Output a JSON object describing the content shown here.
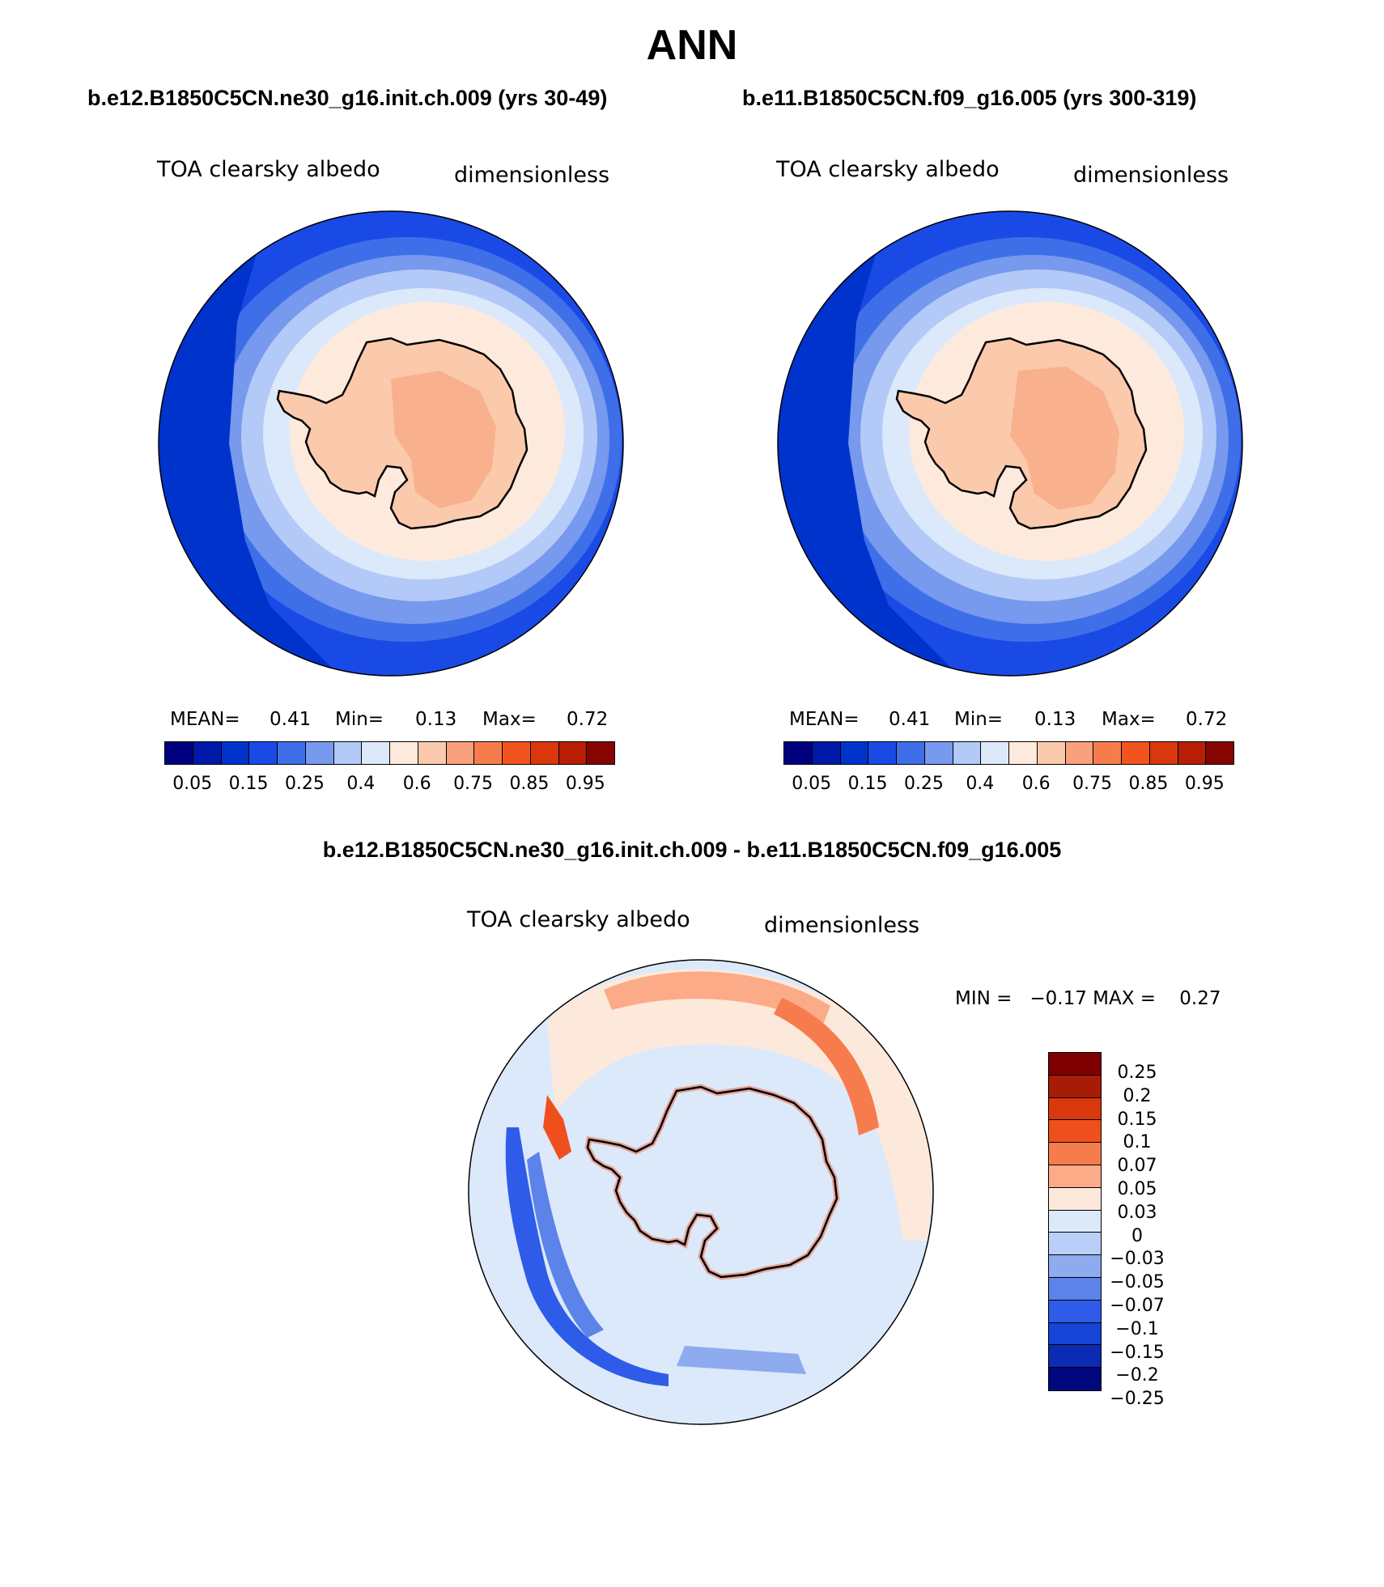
{
  "title": "ANN",
  "panels": [
    {
      "case": "b.e12.B1850C5CN.ne30_g16.init.ch.009 (yrs 30-49)",
      "variable": "TOA clearsky albedo",
      "units": "dimensionless",
      "stats": {
        "mean_label": "MEAN=",
        "mean": "0.41",
        "min_label": "Min=",
        "min": "0.13",
        "max_label": "Max=",
        "max": "0.72"
      }
    },
    {
      "case": "b.e11.B1850C5CN.f09_g16.005 (yrs 300-319)",
      "variable": "TOA clearsky albedo",
      "units": "dimensionless",
      "stats": {
        "mean_label": "MEAN=",
        "mean": "0.41",
        "min_label": "Min=",
        "min": "0.13",
        "max_label": "Max=",
        "max": "0.72"
      }
    }
  ],
  "colorbar": {
    "colors": [
      "#00007f",
      "#0019a8",
      "#0033cc",
      "#1a4ae6",
      "#3f6fe8",
      "#7799ee",
      "#b3c9f7",
      "#dce9fb",
      "#feeadc",
      "#fbc9ac",
      "#f9a07c",
      "#f77c4d",
      "#f2541f",
      "#d9380d",
      "#b81e06",
      "#850503"
    ],
    "ticks": [
      "0.05",
      "0.15",
      "0.25",
      "0.4",
      "0.6",
      "0.75",
      "0.85",
      "0.95"
    ]
  },
  "difference": {
    "title": "b.e12.B1850C5CN.ne30_g16.init.ch.009 - b.e11.B1850C5CN.f09_g16.005",
    "variable": "TOA clearsky albedo",
    "units": "dimensionless",
    "minmax": "MIN =   −0.17 MAX =    0.27",
    "colors": [
      "#7f0000",
      "#a81b04",
      "#d9380d",
      "#ef4f1c",
      "#f77c4d",
      "#fbab87",
      "#fde9dc",
      "#dce9fb",
      "#b9cff7",
      "#8eabf0",
      "#5b83e9",
      "#2e5ce8",
      "#1544d6",
      "#0b2bb4",
      "#00087f"
    ],
    "ticks": [
      "0.25",
      "0.2",
      "0.15",
      "0.1",
      "0.07",
      "0.05",
      "0.03",
      "0",
      "−0.03",
      "−0.05",
      "−0.07",
      "−0.1",
      "−0.15",
      "−0.2",
      "−0.25"
    ]
  }
}
